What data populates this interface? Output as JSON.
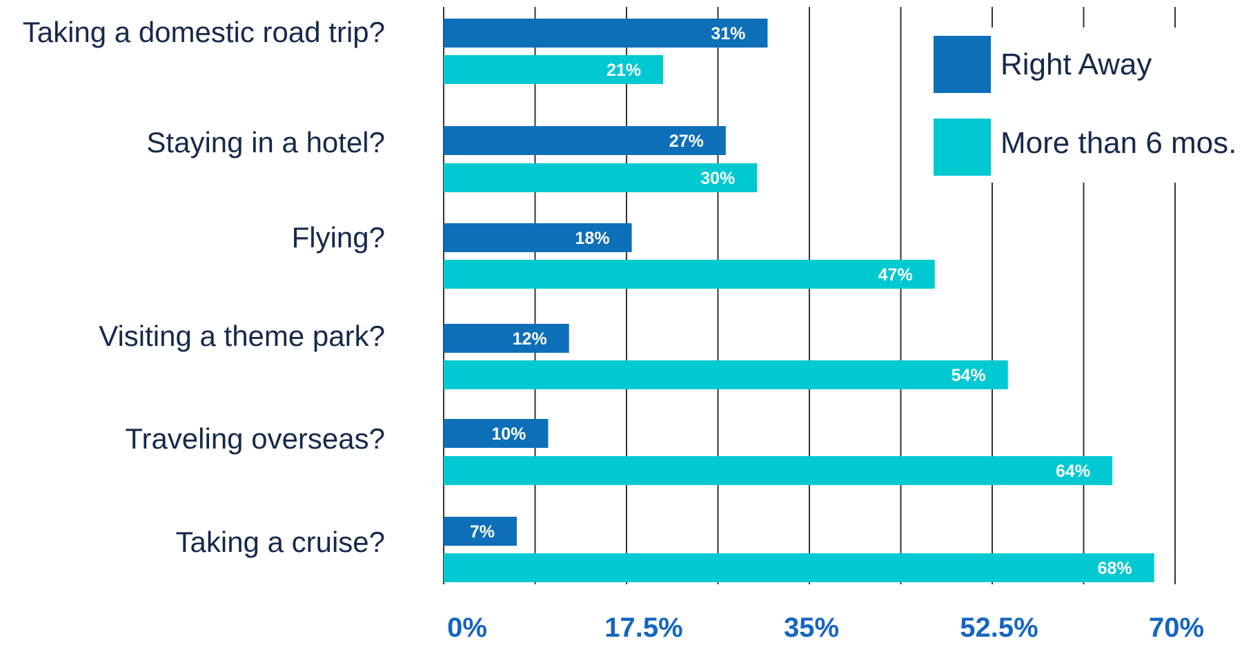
{
  "chart_data": {
    "type": "bar",
    "orientation": "horizontal",
    "categories": [
      "Taking a domestic road trip?",
      "Staying in a hotel?",
      "Flying?",
      "Visiting a theme park?",
      "Traveling overseas?",
      "Taking a cruise?"
    ],
    "series": [
      {
        "name": "Right Away",
        "color": "#0d6fb8",
        "values": [
          31,
          27,
          18,
          12,
          10,
          7
        ],
        "labels": [
          "31%",
          "27%",
          "18%",
          "12%",
          "10%",
          "7%"
        ]
      },
      {
        "name": "More than 6 mos.",
        "color": "#00c9d2",
        "values": [
          21,
          30,
          47,
          54,
          64,
          68
        ],
        "labels": [
          "21%",
          "30%",
          "47%",
          "54%",
          "64%",
          "68%"
        ]
      }
    ],
    "xlim": [
      0,
      70
    ],
    "xticks": [
      0,
      17.5,
      35,
      52.5,
      70
    ],
    "xtick_labels": [
      "0%",
      "17.5%",
      "35%",
      "52.5%",
      "70%"
    ],
    "grid": true,
    "legend_position": "top-right",
    "colors": {
      "text": "#16294a",
      "tick": "#1565c0",
      "grid": "#333333"
    }
  }
}
